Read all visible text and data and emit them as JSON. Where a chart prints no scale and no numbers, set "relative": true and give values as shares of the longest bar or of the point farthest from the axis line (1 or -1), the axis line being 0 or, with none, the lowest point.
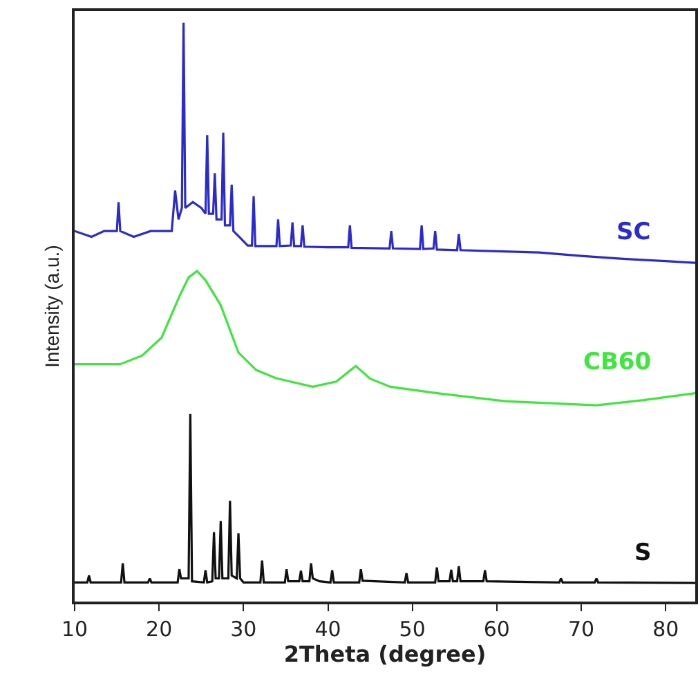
{
  "chart_data": {
    "type": "line",
    "relative": true,
    "xlabel": "2Theta (degree)",
    "ylabel": "Intensity (a.u.)",
    "xlim": [
      10,
      83.5
    ],
    "xticks": [
      10,
      20,
      30,
      40,
      50,
      60,
      70,
      80
    ],
    "legend": false,
    "grid": false,
    "marker": "none",
    "series": [
      {
        "name": "SC",
        "color": "#2a2ad0",
        "x": [
          10,
          12,
          13.5,
          15,
          15.2,
          15.4,
          17,
          19,
          21.5,
          21.9,
          22.3,
          22.7,
          22.9,
          23.1,
          24,
          25,
          25.5,
          25.7,
          25.9,
          26.4,
          26.6,
          26.8,
          27.4,
          27.6,
          27.8,
          28.4,
          28.6,
          28.8,
          29.5,
          30.5,
          31,
          31.2,
          31.4,
          33.9,
          34.1,
          34.3,
          35.6,
          35.8,
          36,
          36.8,
          37,
          37.2,
          40,
          42.4,
          42.6,
          42.8,
          47.3,
          47.5,
          47.7,
          50.9,
          51.1,
          51.3,
          52.5,
          52.7,
          52.9,
          55.3,
          55.5,
          55.7,
          60,
          65,
          70,
          75,
          80,
          83.5
        ],
        "values": [
          0.64,
          0.63,
          0.64,
          0.64,
          0.69,
          0.64,
          0.63,
          0.64,
          0.64,
          0.71,
          0.66,
          0.68,
          1,
          0.68,
          0.69,
          0.68,
          0.67,
          0.806,
          0.67,
          0.67,
          0.74,
          0.66,
          0.66,
          0.81,
          0.65,
          0.65,
          0.72,
          0.64,
          0.63,
          0.615,
          0.615,
          0.7,
          0.614,
          0.614,
          0.66,
          0.614,
          0.615,
          0.655,
          0.614,
          0.614,
          0.65,
          0.613,
          0.612,
          0.612,
          0.65,
          0.611,
          0.61,
          0.64,
          0.61,
          0.609,
          0.65,
          0.609,
          0.61,
          0.64,
          0.608,
          0.607,
          0.635,
          0.607,
          0.605,
          0.603,
          0.597,
          0.592,
          0.588,
          0.585
        ]
      },
      {
        "name": "CB60",
        "color": "#3ee63e",
        "x": [
          10,
          15.4,
          18,
          20.3,
          22.4,
          23.5,
          24.5,
          25.5,
          27.3,
          29.4,
          31.5,
          33.8,
          38.2,
          41,
          43.3,
          45,
          47.4,
          52.9,
          61.1,
          71.8,
          77.4,
          83.5
        ],
        "values": [
          0.41,
          0.41,
          0.425,
          0.456,
          0.527,
          0.56,
          0.571,
          0.555,
          0.512,
          0.43,
          0.4,
          0.386,
          0.371,
          0.38,
          0.407,
          0.385,
          0.371,
          0.36,
          0.346,
          0.339,
          0.348,
          0.36
        ]
      },
      {
        "name": "S",
        "color": "#111111",
        "x": [
          10,
          11.5,
          11.7,
          11.9,
          15.5,
          15.7,
          15.9,
          18.7,
          18.9,
          19.1,
          22.2,
          22.4,
          22.6,
          23.5,
          23.7,
          23.9,
          25.3,
          25.5,
          25.7,
          26.3,
          26.5,
          26.7,
          27.1,
          27.3,
          27.5,
          28.2,
          28.4,
          28.6,
          29.2,
          29.4,
          29.6,
          30,
          32,
          32.2,
          32.4,
          34.9,
          35.1,
          35.3,
          36.6,
          36.8,
          37,
          37.8,
          38,
          38.2,
          39,
          40.3,
          40.5,
          40.7,
          43.7,
          43.9,
          44.1,
          49.1,
          49.3,
          49.5,
          52.7,
          52.9,
          53.1,
          54.4,
          54.6,
          54.8,
          55.3,
          55.5,
          55.7,
          58.4,
          58.6,
          58.8,
          67.4,
          67.6,
          67.8,
          71.6,
          71.8,
          72,
          83.5
        ],
        "values": [
          0.033,
          0.033,
          0.045,
          0.033,
          0.033,
          0.066,
          0.033,
          0.033,
          0.04,
          0.033,
          0.033,
          0.056,
          0.04,
          0.04,
          0.324,
          0.035,
          0.033,
          0.054,
          0.033,
          0.035,
          0.12,
          0.04,
          0.04,
          0.139,
          0.04,
          0.04,
          0.174,
          0.045,
          0.04,
          0.118,
          0.04,
          0.033,
          0.033,
          0.071,
          0.033,
          0.033,
          0.056,
          0.035,
          0.035,
          0.053,
          0.035,
          0.035,
          0.066,
          0.04,
          0.035,
          0.033,
          0.054,
          0.033,
          0.033,
          0.056,
          0.036,
          0.033,
          0.049,
          0.033,
          0.033,
          0.059,
          0.035,
          0.035,
          0.055,
          0.035,
          0.035,
          0.061,
          0.035,
          0.035,
          0.054,
          0.035,
          0.033,
          0.04,
          0.033,
          0.033,
          0.04,
          0.033,
          0.032
        ]
      }
    ]
  }
}
